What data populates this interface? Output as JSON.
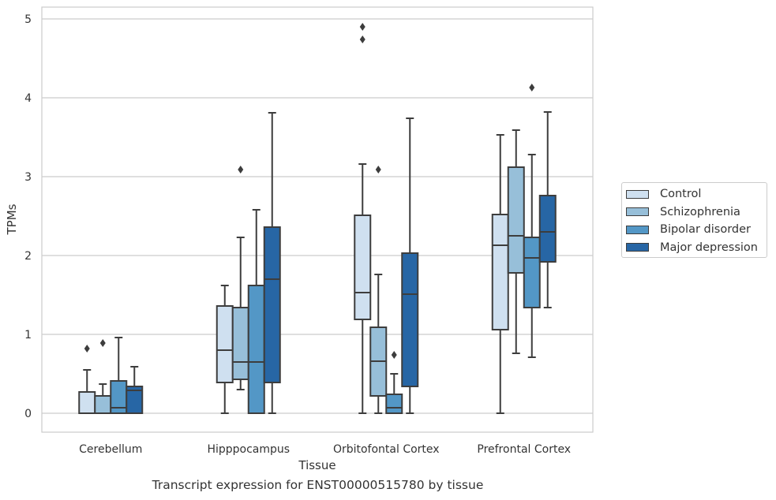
{
  "caption": "Transcript expression for ENST00000515780 by tissue",
  "chart_data": {
    "type": "boxplot",
    "xlabel": "Tissue",
    "ylabel": "TPMs",
    "ylim": [
      -0.24,
      5.15
    ],
    "yticks": [
      0,
      1,
      2,
      3,
      4,
      5
    ],
    "grid": "horizontal",
    "legend_position": "right",
    "categories": [
      "Cerebellum",
      "Hipppocampus",
      "Orbitofontal Cortex",
      "Prefrontal Cortex"
    ],
    "series": [
      {
        "name": "Control",
        "color": "#cfe0f0",
        "boxes": [
          {
            "whislo": 0,
            "q1": 0,
            "med": 0,
            "q3": 0.27,
            "whishi": 0.55,
            "fliers": [
              0.82
            ]
          },
          {
            "whislo": 0,
            "q1": 0.39,
            "med": 0.8,
            "q3": 1.36,
            "whishi": 1.62,
            "fliers": []
          },
          {
            "whislo": 0,
            "q1": 1.19,
            "med": 1.53,
            "q3": 2.51,
            "whishi": 3.16,
            "fliers": [
              4.74,
              4.9
            ]
          },
          {
            "whislo": 0,
            "q1": 1.06,
            "med": 2.13,
            "q3": 2.52,
            "whishi": 3.53,
            "fliers": []
          }
        ]
      },
      {
        "name": "Schizophrenia",
        "color": "#97bfd9",
        "boxes": [
          {
            "whislo": 0,
            "q1": 0,
            "med": 0,
            "q3": 0.22,
            "whishi": 0.37,
            "fliers": [
              0.89
            ]
          },
          {
            "whislo": 0.3,
            "q1": 0.43,
            "med": 0.65,
            "q3": 1.34,
            "whishi": 2.23,
            "fliers": [
              3.09
            ]
          },
          {
            "whislo": 0,
            "q1": 0.22,
            "med": 0.66,
            "q3": 1.09,
            "whishi": 1.76,
            "fliers": [
              3.09
            ]
          },
          {
            "whislo": 0.76,
            "q1": 1.78,
            "med": 2.25,
            "q3": 3.12,
            "whishi": 3.59,
            "fliers": []
          }
        ]
      },
      {
        "name": "Bipolar disorder",
        "color": "#5397c6",
        "boxes": [
          {
            "whislo": 0,
            "q1": 0,
            "med": 0.07,
            "q3": 0.41,
            "whishi": 0.96,
            "fliers": []
          },
          {
            "whislo": 0,
            "q1": 0,
            "med": 0.65,
            "q3": 1.62,
            "whishi": 2.58,
            "fliers": []
          },
          {
            "whislo": 0,
            "q1": 0,
            "med": 0.07,
            "q3": 0.24,
            "whishi": 0.5,
            "fliers": [
              0.74
            ]
          },
          {
            "whislo": 0.71,
            "q1": 1.34,
            "med": 1.97,
            "q3": 2.23,
            "whishi": 3.28,
            "fliers": [
              4.13
            ]
          }
        ]
      },
      {
        "name": "Major depression",
        "color": "#2766a5",
        "boxes": [
          {
            "whislo": 0,
            "q1": 0,
            "med": 0.29,
            "q3": 0.34,
            "whishi": 0.59,
            "fliers": []
          },
          {
            "whislo": 0,
            "q1": 0.39,
            "med": 1.7,
            "q3": 2.36,
            "whishi": 3.81,
            "fliers": []
          },
          {
            "whislo": 0,
            "q1": 0.34,
            "med": 1.51,
            "q3": 2.03,
            "whishi": 3.74,
            "fliers": []
          },
          {
            "whislo": 1.34,
            "q1": 1.92,
            "med": 2.3,
            "q3": 2.76,
            "whishi": 3.82,
            "fliers": []
          }
        ]
      }
    ]
  }
}
